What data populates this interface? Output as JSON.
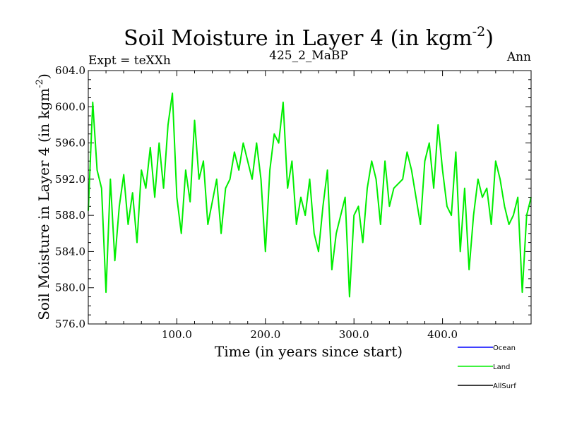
{
  "chart_data": {
    "type": "line",
    "title": "Soil Moisture in Layer 4 (in kgm",
    "title_sup": "-2",
    "title_close": ")",
    "subtitle_left": "Expt = teXXh",
    "subtitle_center": "425_2_MaBP",
    "subtitle_right": "Ann",
    "xlabel": "Time (in years since start)",
    "ylabel": "Soil Moisture in Layer 4 (in kgm",
    "ylabel_sup": "-2",
    "ylabel_close": ")",
    "xlim": [
      0,
      500
    ],
    "ylim": [
      576.0,
      604.0
    ],
    "xticks": [
      100,
      200,
      300,
      400
    ],
    "xtick_labels": [
      "100.0",
      "200.0",
      "300.0",
      "400.0"
    ],
    "yticks": [
      576,
      580,
      584,
      588,
      592,
      596,
      600,
      604
    ],
    "ytick_labels": [
      "576.0",
      "580.0",
      "584.0",
      "588.0",
      "592.0",
      "596.0",
      "600.0",
      "604.0"
    ],
    "legend": [
      {
        "name": "Ocean",
        "color": "#0000ff"
      },
      {
        "name": "Land",
        "color": "#00ee00"
      },
      {
        "name": "AllSurf",
        "color": "#000000"
      }
    ],
    "series": [
      {
        "name": "Land",
        "color": "#00ee00",
        "x": [
          0,
          5,
          10,
          15,
          20,
          25,
          30,
          35,
          40,
          45,
          50,
          55,
          60,
          65,
          70,
          75,
          80,
          85,
          90,
          95,
          100,
          105,
          110,
          115,
          120,
          125,
          130,
          135,
          140,
          145,
          150,
          155,
          160,
          165,
          170,
          175,
          180,
          185,
          190,
          195,
          200,
          205,
          210,
          215,
          220,
          225,
          230,
          235,
          240,
          245,
          250,
          255,
          260,
          265,
          270,
          275,
          280,
          285,
          290,
          295,
          300,
          305,
          310,
          315,
          320,
          325,
          330,
          335,
          340,
          345,
          350,
          355,
          360,
          365,
          370,
          375,
          380,
          385,
          390,
          395,
          400,
          405,
          410,
          415,
          420,
          425,
          430,
          435,
          440,
          445,
          450,
          455,
          460,
          465,
          470,
          475,
          480,
          485,
          490,
          495,
          500
        ],
        "values": [
          588.5,
          600.5,
          593,
          591,
          579.5,
          592,
          583,
          589,
          592.5,
          587,
          590.5,
          585,
          593,
          591,
          595.5,
          590,
          596,
          591,
          598,
          601.5,
          590,
          586,
          593,
          589.5,
          598.5,
          592,
          594,
          587,
          589.5,
          592,
          586,
          591,
          592,
          595,
          593,
          596,
          594,
          592,
          596,
          592,
          584,
          593,
          597,
          596,
          600.5,
          591,
          594,
          587,
          590,
          588,
          592,
          586,
          584,
          589,
          593,
          582,
          586,
          588,
          590,
          579,
          588,
          589,
          585,
          591,
          594,
          592,
          587,
          594,
          589,
          591,
          591.5,
          592,
          595,
          593,
          590,
          587,
          594,
          596,
          591,
          598,
          593,
          589,
          588,
          595,
          584,
          591,
          582,
          588,
          592,
          590,
          591,
          587,
          594,
          592,
          589,
          587,
          588,
          590,
          579.5,
          588,
          590
        ]
      }
    ]
  }
}
